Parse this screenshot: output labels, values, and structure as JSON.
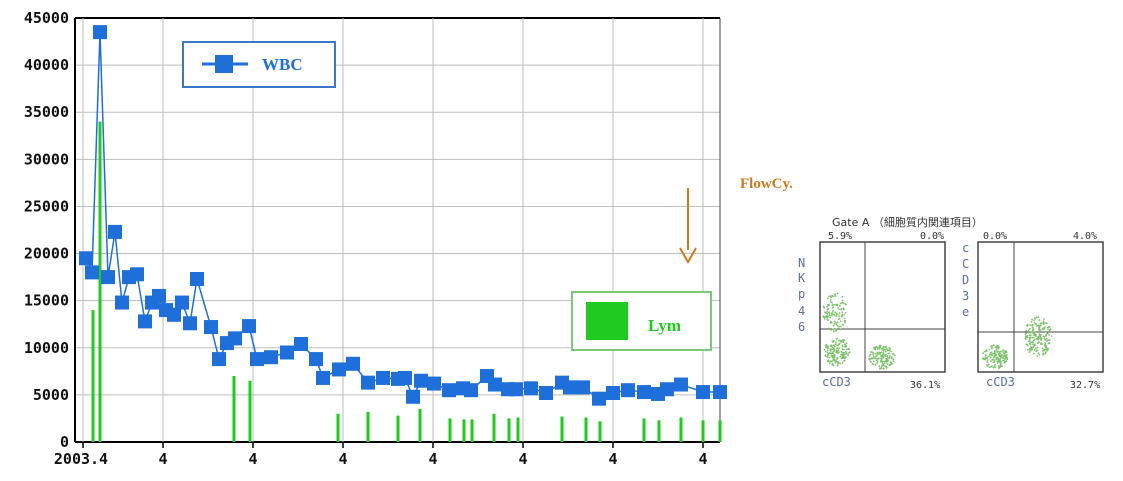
{
  "chart_data": [
    {
      "type": "line",
      "title": "",
      "xlabel": "",
      "ylabel": "",
      "ylim": [
        0,
        45000
      ],
      "yticks": [
        0,
        5000,
        10000,
        15000,
        20000,
        25000,
        30000,
        35000,
        40000,
        45000
      ],
      "xtick_labels": [
        "2003.4",
        "4",
        "4",
        "4",
        "4",
        "4",
        "4",
        "4"
      ],
      "grid": true,
      "series": [
        {
          "name": "WBC",
          "color": "#1e6fd9",
          "marker": "square",
          "values": [
            19500,
            18000,
            43500,
            17500,
            22300,
            14800,
            17500,
            17800,
            12800,
            14800,
            15500,
            14000,
            13500,
            14800,
            12600,
            17300,
            12200,
            8800,
            10500,
            11000,
            12300,
            8800,
            9000,
            9500,
            10400,
            8800,
            6800,
            7700,
            8300,
            6300,
            6800,
            6700,
            6800,
            4800,
            6500,
            6200,
            5500,
            5700,
            5500,
            7000,
            6100,
            5600,
            5600,
            5700,
            5200,
            6300,
            5800,
            5800,
            4600,
            5200,
            5500,
            5300,
            5100,
            5600,
            6100,
            5300,
            5300
          ]
        },
        {
          "name": "Lym",
          "color": "#1ecb1e",
          "type": "bar",
          "values": [
            14000,
            34000,
            7000,
            6500,
            3000,
            3200,
            2800,
            3500,
            2500,
            2400,
            2400,
            3000,
            2500,
            2600,
            2700,
            2600,
            2200,
            2500,
            2300,
            2600,
            2300,
            2300
          ]
        }
      ],
      "legend": [
        "WBC",
        "Lym"
      ],
      "annotation": "arrow near 2003.4 at far right"
    }
  ],
  "flow": {
    "title": "FlowCy.",
    "header": "Gate A （細胞質内関連項目）",
    "panels": [
      {
        "y_letters": [
          "N",
          "K",
          "p",
          "4",
          "6"
        ],
        "x_label": "cCD3",
        "q_ul": "5.9%",
        "q_ur": "0.0%",
        "q_lr": "36.1%"
      },
      {
        "y_letters": [
          "c",
          "C",
          "D",
          "3",
          "e"
        ],
        "x_label": "cCD3",
        "q_ul": "0.0%",
        "q_ur": "4.0%",
        "q_lr": "32.7%"
      }
    ]
  }
}
